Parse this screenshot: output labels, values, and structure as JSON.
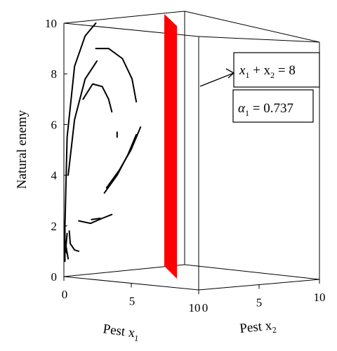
{
  "chart_data": {
    "type": "line",
    "dimensions": 3,
    "xlabel": "Pest x",
    "xlabel_sub": "1",
    "ylabel": "Pest x",
    "ylabel_sub": "2",
    "zlabel": "Natural enemy",
    "xlim": [
      0,
      10
    ],
    "ylim": [
      0,
      10
    ],
    "zlim": [
      0,
      10
    ],
    "x_ticks": [
      0,
      5,
      10
    ],
    "y_ticks": [
      0,
      5,
      10
    ],
    "z_ticks": [
      0,
      2,
      4,
      6,
      8,
      10
    ],
    "x_tick_labels": [
      "0",
      "5",
      "10"
    ],
    "y_tick_labels": [
      "0",
      "5",
      "10"
    ],
    "z_tick_labels": [
      "0",
      "2",
      "4",
      "6",
      "8",
      "10"
    ],
    "plane": {
      "equation_lhs_a": "x",
      "equation_sub_a": "1",
      "equation_plus": " + x",
      "equation_sub_b": "2",
      "equation_rhs": " = 8",
      "sum": 8,
      "color": "#ff0000"
    },
    "parameter": {
      "symbol": "α",
      "sub": "1",
      "text": " = 0.737",
      "value": 0.737
    },
    "trajectories": [
      [
        [
          0.1,
          0.6
        ],
        [
          0.1,
          2.0
        ],
        [
          0.3,
          5.5
        ],
        [
          1.0,
          8.3
        ],
        [
          2.0,
          9.5
        ],
        [
          3.0,
          10.0
        ]
      ],
      [
        [
          0.4,
          4.0
        ],
        [
          1.0,
          6.2
        ],
        [
          2.0,
          7.8
        ],
        [
          3.1,
          8.5
        ]
      ],
      [
        [
          1.8,
          7.0
        ],
        [
          2.7,
          7.6
        ],
        [
          3.6,
          7.5
        ],
        [
          4.2,
          7.0
        ],
        [
          4.5,
          6.5
        ]
      ],
      [
        [
          3.0,
          9.0
        ],
        [
          4.2,
          9.0
        ],
        [
          5.5,
          8.6
        ],
        [
          6.4,
          7.8
        ],
        [
          6.8,
          6.9
        ]
      ],
      [
        [
          4.0,
          3.5
        ],
        [
          5.2,
          4.2
        ],
        [
          6.3,
          5.0
        ],
        [
          7.2,
          5.9
        ]
      ],
      [
        [
          3.8,
          3.3
        ],
        [
          5.0,
          4.0
        ],
        [
          6.0,
          4.8
        ],
        [
          6.8,
          5.6
        ]
      ],
      [
        [
          1.4,
          2.2
        ],
        [
          2.5,
          2.1
        ],
        [
          3.6,
          2.3
        ],
        [
          4.5,
          2.45
        ]
      ],
      [
        [
          2.6,
          2.25
        ],
        [
          3.4,
          2.3
        ]
      ],
      [
        [
          0.1,
          1.1
        ],
        [
          0.3,
          0.9
        ]
      ],
      [
        [
          0.5,
          1.8
        ],
        [
          0.6,
          1.3
        ],
        [
          1.0,
          1.05
        ],
        [
          1.4,
          1.0
        ]
      ],
      [
        [
          0.3,
          1.7
        ],
        [
          0.2,
          1.2
        ],
        [
          0.4,
          0.7
        ]
      ],
      [
        [
          5.0,
          5.7
        ],
        [
          5.0,
          5.5
        ]
      ]
    ],
    "grid": false,
    "legend": "none"
  }
}
